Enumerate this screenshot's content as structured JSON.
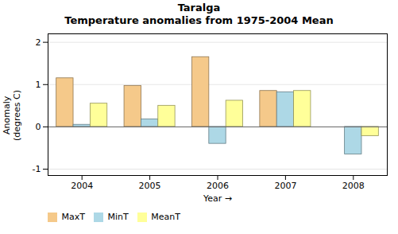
{
  "chart_data": {
    "type": "bar",
    "title": "Taralga\nTemperature anomalies from 1975-2004 Mean",
    "xlabel": "Year",
    "ylabel": "Anomaly\n(degrees C)",
    "categories": [
      "2004",
      "2005",
      "2006",
      "2007",
      "2008"
    ],
    "series": [
      {
        "name": "MaxT",
        "color": "#F5C98A",
        "values": [
          1.15,
          0.97,
          1.65,
          0.85,
          0.0
        ]
      },
      {
        "name": "MinT",
        "color": "#ADD8E6",
        "values": [
          0.05,
          0.18,
          -0.4,
          0.82,
          -0.65
        ]
      },
      {
        "name": "MeanT",
        "color": "#FFFF99",
        "values": [
          0.55,
          0.5,
          0.62,
          0.85,
          -0.22
        ]
      }
    ],
    "ylim": [
      -1.15,
      2.2
    ],
    "yticks": [
      -1,
      0,
      1,
      2
    ],
    "grid": true,
    "legend": "lower left"
  }
}
